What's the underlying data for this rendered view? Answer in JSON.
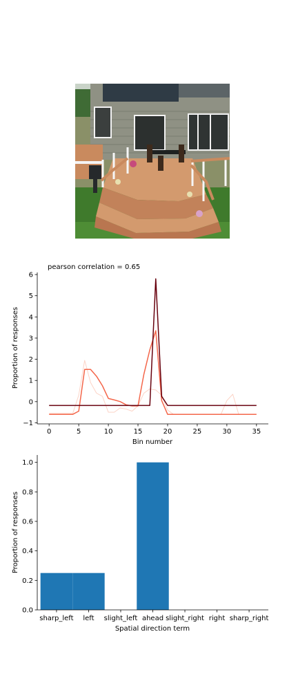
{
  "photo": {
    "subject": "wooden deck with curved stairs and white railings attached to a grey-sided house"
  },
  "chart_data": [
    {
      "type": "line",
      "title": "pearson correlation = 0.65",
      "xlabel": "Bin number",
      "ylabel": "Proportion of responses",
      "xlim": [
        -2,
        37
      ],
      "ylim": [
        -1.05,
        6.1
      ],
      "xticks": [
        "0",
        "5",
        "10",
        "15",
        "20",
        "25",
        "30",
        "35"
      ],
      "yticks": [
        "−1",
        "0",
        "1",
        "2",
        "3",
        "4",
        "5",
        "6"
      ],
      "grid": false,
      "x": [
        0,
        1,
        2,
        3,
        4,
        5,
        6,
        7,
        8,
        9,
        10,
        11,
        12,
        13,
        14,
        15,
        16,
        17,
        18,
        19,
        20,
        21,
        22,
        23,
        24,
        25,
        26,
        27,
        28,
        29,
        30,
        31,
        32,
        33,
        34,
        35
      ],
      "series": [
        {
          "color": "#fcd3c6",
          "width": 1,
          "values": [
            -0.55,
            -0.55,
            -0.55,
            -0.55,
            -0.55,
            0.3,
            1.95,
            0.9,
            0.4,
            0.25,
            -0.5,
            -0.5,
            -0.3,
            -0.35,
            -0.45,
            -0.2,
            0.4,
            0.6,
            0.55,
            0.3,
            -0.4,
            -0.6,
            -0.6,
            -0.6,
            -0.6,
            -0.6,
            -0.6,
            -0.6,
            -0.6,
            -0.6,
            0.05,
            0.35,
            -0.6,
            -0.6,
            -0.6,
            -0.6
          ]
        },
        {
          "color": "#f4664a",
          "width": 1.5,
          "values": [
            -0.6,
            -0.6,
            -0.6,
            -0.6,
            -0.6,
            -0.45,
            1.52,
            1.52,
            1.2,
            0.75,
            0.15,
            0.08,
            0.0,
            -0.15,
            -0.2,
            -0.2,
            1.3,
            2.45,
            3.35,
            0.05,
            -0.6,
            -0.6,
            -0.6,
            -0.6,
            -0.6,
            -0.6,
            -0.6,
            -0.6,
            -0.6,
            -0.6,
            -0.6,
            -0.6,
            -0.6,
            -0.6,
            -0.6,
            -0.6
          ]
        },
        {
          "color": "#67000d",
          "width": 1.5,
          "values": [
            -0.18,
            -0.18,
            -0.18,
            -0.18,
            -0.18,
            -0.18,
            -0.18,
            -0.18,
            -0.18,
            -0.18,
            -0.18,
            -0.18,
            -0.18,
            -0.18,
            -0.18,
            -0.18,
            -0.18,
            -0.18,
            5.8,
            0.25,
            -0.18,
            -0.18,
            -0.18,
            -0.18,
            -0.18,
            -0.18,
            -0.18,
            -0.18,
            -0.18,
            -0.18,
            -0.18,
            -0.18,
            -0.18,
            -0.18,
            -0.18,
            -0.18
          ]
        }
      ]
    },
    {
      "type": "bar",
      "xlabel": "Spatial direction term",
      "ylabel": "Proportion of responses",
      "categories": [
        "sharp_left",
        "left",
        "slight_left",
        "ahead",
        "slight_right",
        "right",
        "sharp_right"
      ],
      "values": [
        0.25,
        0.25,
        0,
        1.0,
        0,
        0,
        0
      ],
      "ylim": [
        0,
        1.05
      ],
      "yticks": [
        "0.0",
        "0.2",
        "0.4",
        "0.6",
        "0.8",
        "1.0"
      ],
      "color": "#1f77b4",
      "grid": false
    }
  ]
}
